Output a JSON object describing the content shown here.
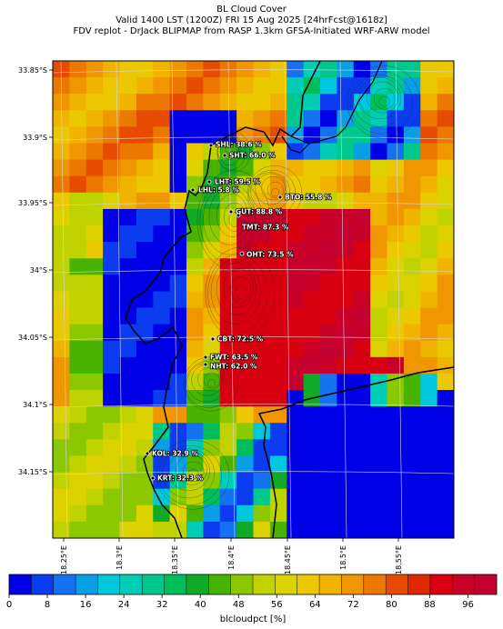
{
  "header": {
    "line1": "BL Cloud Cover",
    "line2": "Valid 1400 LST (1200Z) FRI 15 Aug 2025 [24hrFcst@1618z]",
    "line3": "FDV replot - DrJack BLIPMAP from RASP 1.3km GFSA-Initiated WRF-ARW model"
  },
  "lat_labels": [
    "33.85°S",
    "33.9°S",
    "33.95°S",
    "34°S",
    "34.05°S",
    "34.1°S",
    "34.15°S"
  ],
  "lon_labels": [
    "18.25°E",
    "18.3°E",
    "18.35°E",
    "18.4°E",
    "18.45°E",
    "18.5°E",
    "18.55°E"
  ],
  "stations": [
    {
      "id": "SHL",
      "label": "SHL: 38.6 %"
    },
    {
      "id": "SHT",
      "label": "SHT: 66.0 %"
    },
    {
      "id": "LHT",
      "label": "LHT: 59.5 %"
    },
    {
      "id": "LHL",
      "label": "LHL: 5.8 %"
    },
    {
      "id": "BTO",
      "label": "BTO: 55.8 %"
    },
    {
      "id": "GUT",
      "label": "GUT: 88.8 %"
    },
    {
      "id": "TMT",
      "label": "TMT: 87.3 %"
    },
    {
      "id": "OHT",
      "label": "OHT: 73.5 %"
    },
    {
      "id": "CBT",
      "label": "CBT: 72.5 %"
    },
    {
      "id": "FWT",
      "label": "FWT: 63.5 %"
    },
    {
      "id": "NHT",
      "label": "NHT: 62.0 %"
    },
    {
      "id": "KOL",
      "label": "KOL: 32.9 %"
    },
    {
      "id": "KRT",
      "label": "KRT: 32.3 %"
    }
  ],
  "colorbar": {
    "label": "blcloudpct [%]",
    "ticks": [
      "0",
      "8",
      "16",
      "24",
      "32",
      "40",
      "48",
      "56",
      "64",
      "72",
      "80",
      "88",
      "96"
    ],
    "colors": [
      "#0000e6",
      "#0b3cf0",
      "#1472f0",
      "#0a9ee6",
      "#00c8dc",
      "#00cdb4",
      "#00c88c",
      "#00be5a",
      "#10aa28",
      "#48b400",
      "#8cc800",
      "#c0d200",
      "#dcd200",
      "#ecc800",
      "#f0b400",
      "#f09600",
      "#ec7800",
      "#e64b00",
      "#e02800",
      "#d80010",
      "#c80028",
      "#c40030"
    ]
  }
}
